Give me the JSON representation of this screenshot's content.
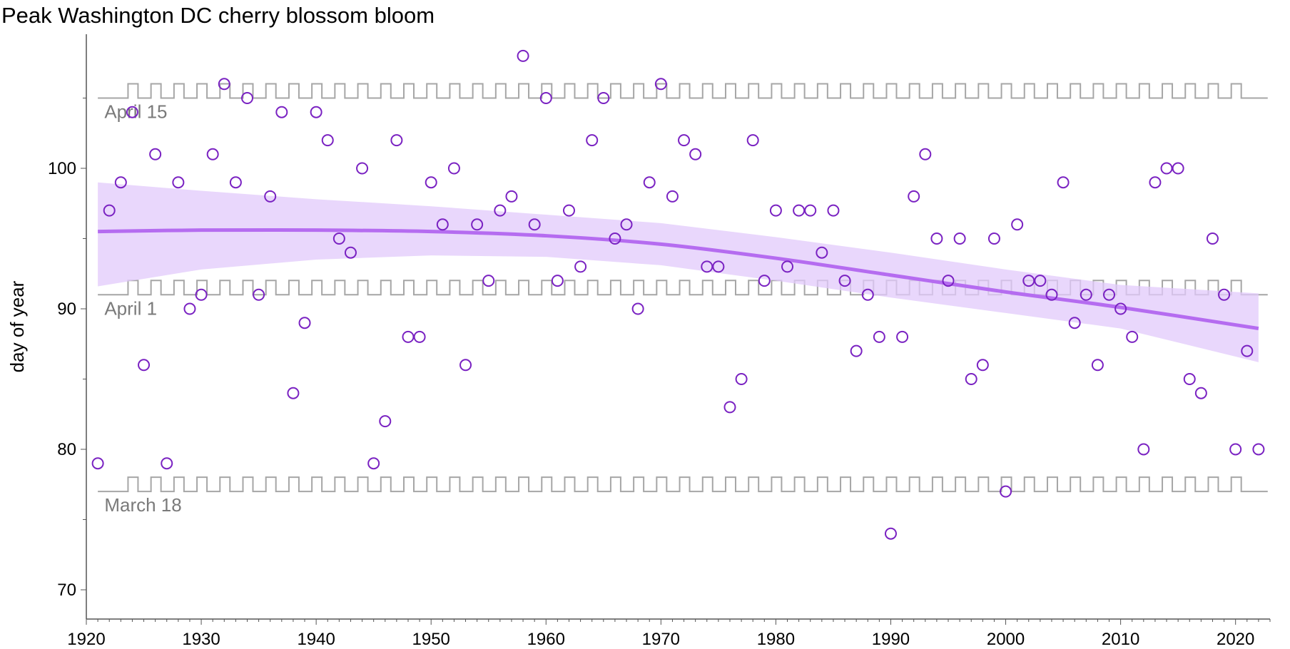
{
  "title": "Peak Washington DC cherry blossom bloom",
  "colors": {
    "point": "#7a22c2",
    "trend_line": "#b56cf0",
    "confidence_band": "#e2c9fb",
    "reference_lines": "#a6a6a6",
    "axis": "#555555"
  },
  "chart_data": {
    "type": "scatter",
    "title": "Peak Washington DC cherry blossom bloom",
    "xlabel": "",
    "ylabel": "day of year",
    "xlim": [
      1920,
      2023
    ],
    "ylim": [
      68,
      109
    ],
    "xticks": [
      1920,
      1930,
      1940,
      1950,
      1960,
      1970,
      1980,
      1990,
      2000,
      2010,
      2020
    ],
    "yticks": [
      70,
      80,
      90,
      100
    ],
    "grid": false,
    "legend": "none",
    "reference_lines": [
      {
        "label": "April 15",
        "y": 105
      },
      {
        "label": "April 1",
        "y": 91
      },
      {
        "label": "March 18",
        "y": 77
      }
    ],
    "points": [
      [
        1921,
        79
      ],
      [
        1922,
        97
      ],
      [
        1923,
        99
      ],
      [
        1924,
        104
      ],
      [
        1925,
        86
      ],
      [
        1926,
        101
      ],
      [
        1927,
        79
      ],
      [
        1928,
        99
      ],
      [
        1929,
        90
      ],
      [
        1930,
        91
      ],
      [
        1931,
        101
      ],
      [
        1932,
        106
      ],
      [
        1933,
        99
      ],
      [
        1934,
        105
      ],
      [
        1935,
        91
      ],
      [
        1936,
        98
      ],
      [
        1937,
        104
      ],
      [
        1938,
        84
      ],
      [
        1939,
        89
      ],
      [
        1940,
        104
      ],
      [
        1941,
        102
      ],
      [
        1942,
        95
      ],
      [
        1943,
        94
      ],
      [
        1944,
        100
      ],
      [
        1945,
        79
      ],
      [
        1946,
        82
      ],
      [
        1947,
        102
      ],
      [
        1948,
        88
      ],
      [
        1949,
        88
      ],
      [
        1950,
        99
      ],
      [
        1951,
        96
      ],
      [
        1952,
        100
      ],
      [
        1953,
        86
      ],
      [
        1954,
        96
      ],
      [
        1955,
        92
      ],
      [
        1956,
        97
      ],
      [
        1957,
        98
      ],
      [
        1958,
        108
      ],
      [
        1959,
        96
      ],
      [
        1960,
        105
      ],
      [
        1961,
        92
      ],
      [
        1962,
        97
      ],
      [
        1963,
        93
      ],
      [
        1964,
        102
      ],
      [
        1965,
        105
      ],
      [
        1966,
        95
      ],
      [
        1967,
        96
      ],
      [
        1968,
        90
      ],
      [
        1969,
        99
      ],
      [
        1970,
        106
      ],
      [
        1971,
        98
      ],
      [
        1972,
        102
      ],
      [
        1973,
        101
      ],
      [
        1974,
        93
      ],
      [
        1975,
        93
      ],
      [
        1976,
        83
      ],
      [
        1977,
        85
      ],
      [
        1978,
        102
      ],
      [
        1979,
        92
      ],
      [
        1980,
        97
      ],
      [
        1981,
        93
      ],
      [
        1982,
        97
      ],
      [
        1983,
        97
      ],
      [
        1984,
        94
      ],
      [
        1985,
        97
      ],
      [
        1986,
        92
      ],
      [
        1987,
        87
      ],
      [
        1988,
        91
      ],
      [
        1989,
        88
      ],
      [
        1990,
        74
      ],
      [
        1991,
        88
      ],
      [
        1992,
        98
      ],
      [
        1993,
        101
      ],
      [
        1994,
        95
      ],
      [
        1995,
        92
      ],
      [
        1996,
        95
      ],
      [
        1997,
        85
      ],
      [
        1998,
        86
      ],
      [
        1999,
        95
      ],
      [
        2000,
        77
      ],
      [
        2001,
        96
      ],
      [
        2002,
        92
      ],
      [
        2003,
        92
      ],
      [
        2004,
        91
      ],
      [
        2005,
        99
      ],
      [
        2006,
        89
      ],
      [
        2007,
        91
      ],
      [
        2008,
        86
      ],
      [
        2009,
        91
      ],
      [
        2010,
        90
      ],
      [
        2011,
        88
      ],
      [
        2012,
        80
      ],
      [
        2013,
        99
      ],
      [
        2014,
        100
      ],
      [
        2015,
        100
      ],
      [
        2016,
        85
      ],
      [
        2017,
        84
      ],
      [
        2018,
        95
      ],
      [
        2019,
        91
      ],
      [
        2020,
        80
      ],
      [
        2021,
        87
      ],
      [
        2022,
        80
      ]
    ],
    "trend": {
      "x": [
        1921,
        1930,
        1940,
        1950,
        1960,
        1970,
        1980,
        1990,
        2000,
        2010,
        2022
      ],
      "y": [
        95.5,
        95.6,
        95.6,
        95.5,
        95.2,
        94.6,
        93.6,
        92.4,
        91.2,
        90.1,
        88.6
      ],
      "lower": [
        91.6,
        92.8,
        93.5,
        93.8,
        93.7,
        93.1,
        92.0,
        90.8,
        89.7,
        88.6,
        86.2
      ],
      "upper": [
        99.0,
        98.4,
        97.8,
        97.3,
        96.7,
        96.1,
        95.1,
        94.0,
        92.8,
        91.7,
        91.1
      ]
    }
  }
}
